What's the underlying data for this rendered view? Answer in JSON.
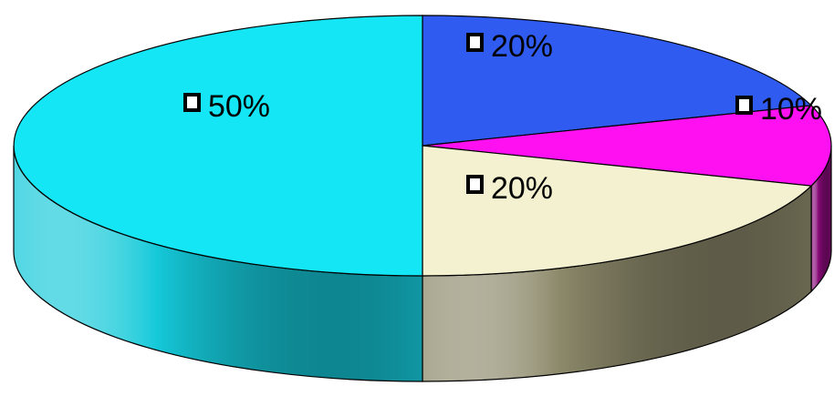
{
  "chart_data": {
    "type": "pie",
    "style": "3d",
    "title": "",
    "start_angle_deg": -90,
    "direction": "clockwise",
    "legend": "none",
    "slices": [
      {
        "label": "20%",
        "value": 20,
        "color": "#2f5bf0",
        "side_color": "#2a3fa8"
      },
      {
        "label": "10%",
        "value": 10,
        "color": "#ff10f0",
        "side_color": "#8a0a7a"
      },
      {
        "label": "20%",
        "value": 20,
        "color": "#f3f1cf",
        "side_color": "#8d8a6b"
      },
      {
        "label": "50%",
        "value": 50,
        "color": "#14e6f5",
        "side_color": "#15c9d9"
      }
    ]
  }
}
